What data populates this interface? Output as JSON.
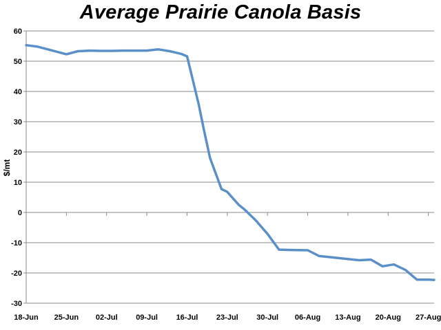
{
  "chart_data": {
    "type": "line",
    "title": "Average Prairie Canola Basis",
    "xlabel": "",
    "ylabel": "$/mt",
    "ylim": [
      -30,
      60
    ],
    "yticks": [
      60,
      50,
      40,
      30,
      20,
      10,
      0,
      -10,
      -20,
      -30
    ],
    "x_tick_labels": [
      "18-Jun",
      "25-Jun",
      "02-Jul",
      "09-Jul",
      "16-Jul",
      "23-Jul",
      "30-Jul",
      "06-Aug",
      "13-Aug",
      "20-Aug",
      "27-Aug"
    ],
    "grid": "horizontal",
    "legend": "none",
    "line_color": "#5a8fc8",
    "series": [
      {
        "x": [
          "06-18",
          "06-20",
          "06-25",
          "06-27",
          "06-29",
          "07-01",
          "07-03",
          "07-05",
          "07-07",
          "07-09",
          "07-11",
          "07-13",
          "07-15",
          "07-16",
          "07-18",
          "07-19",
          "07-20",
          "07-22",
          "07-23",
          "07-25",
          "07-26",
          "07-28",
          "07-30",
          "08-01",
          "08-03",
          "08-06",
          "08-08",
          "08-10",
          "08-13",
          "08-15",
          "08-17",
          "08-19",
          "08-21",
          "08-23",
          "08-25",
          "08-27",
          "08-28"
        ],
        "values": [
          55.3,
          54.8,
          52.3,
          53.3,
          53.5,
          53.4,
          53.4,
          53.5,
          53.5,
          53.5,
          53.9,
          53.3,
          52.4,
          51.6,
          36.0,
          26.7,
          18.0,
          7.7,
          6.8,
          2.5,
          1.0,
          -2.7,
          -7.1,
          -12.3,
          -12.4,
          -12.5,
          -14.4,
          -14.8,
          -15.4,
          -15.8,
          -15.6,
          -17.8,
          -17.2,
          -19.0,
          -22.2,
          -22.2,
          -22.3
        ]
      }
    ]
  }
}
